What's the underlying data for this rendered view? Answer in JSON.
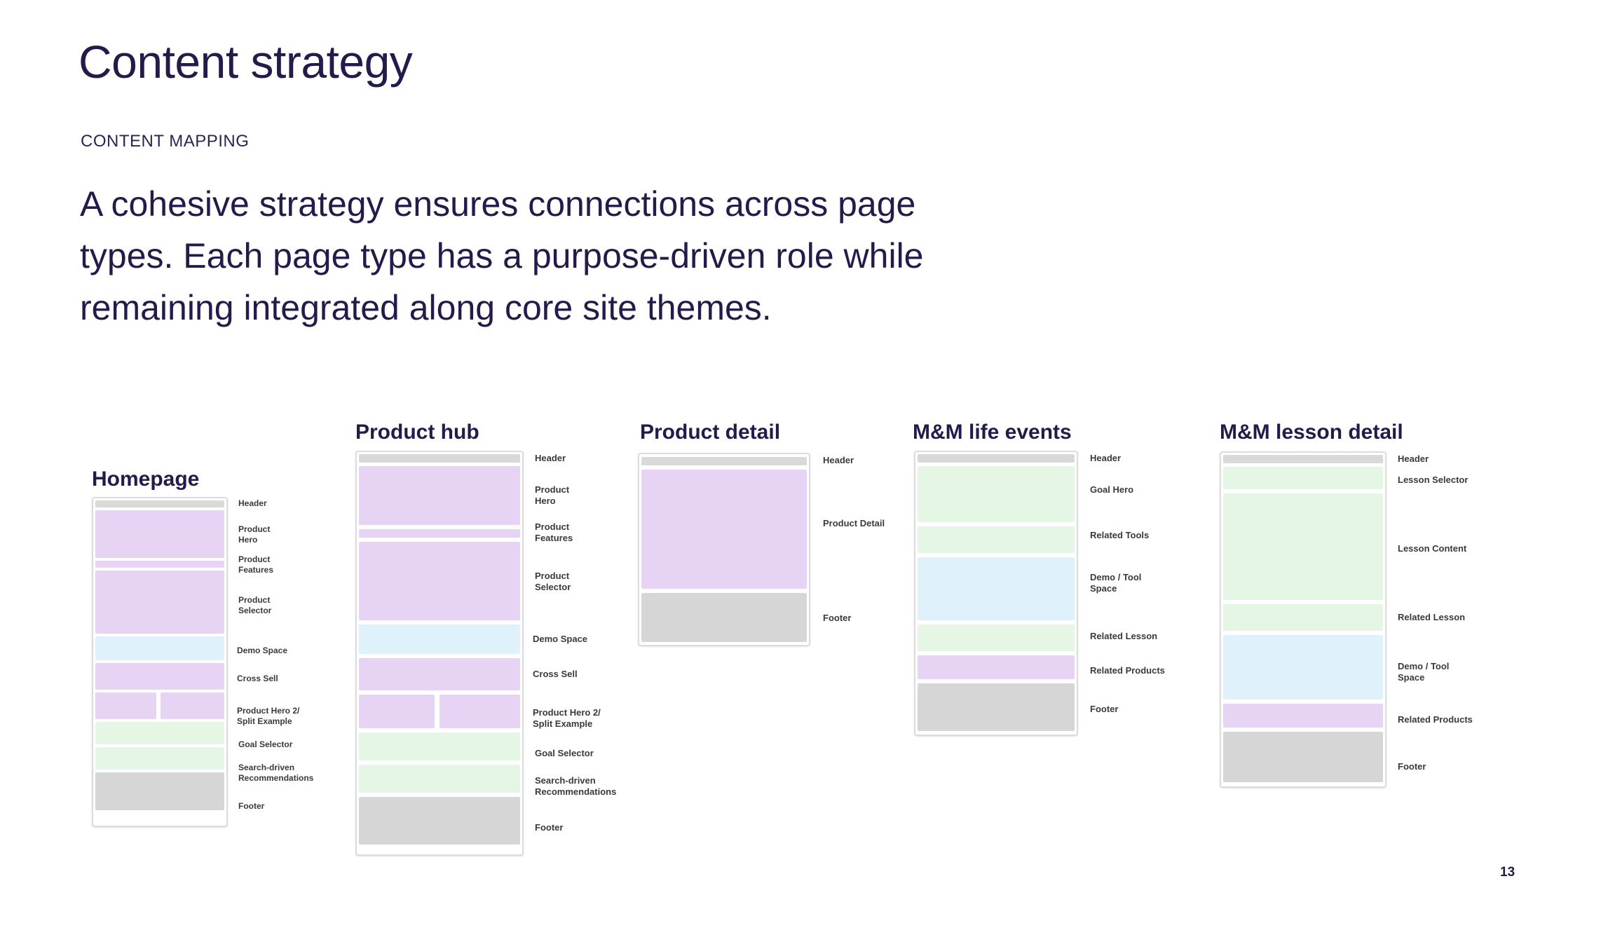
{
  "slide": {
    "title": "Content strategy",
    "eyebrow": "CONTENT MAPPING",
    "lead": "A cohesive strategy ensures connections across page types. Each page type has a purpose-driven role while remaining integrated along core site themes.",
    "page_number": "13"
  },
  "colors": {
    "header": "#d9d9d9",
    "product": "#e7d4f4",
    "demo": "#dff1fb",
    "goal": "#e5f7e4",
    "footer": "#d6d6d6"
  },
  "wireframes": {
    "homepage": {
      "title": "Homepage",
      "labels": [
        "Header",
        "Product\nHero",
        "Product\nFeatures",
        "Product\nSelector",
        "Demo Space",
        "Cross Sell",
        "Product Hero 2/\nSplit Example",
        "Goal Selector",
        "Search-driven\nRecommendations",
        "Footer"
      ]
    },
    "product_hub": {
      "title": "Product hub",
      "labels": [
        "Header",
        "Product\nHero",
        "Product\nFeatures",
        "Product\nSelector",
        "Demo Space",
        "Cross Sell",
        "Product Hero 2/\nSplit Example",
        "Goal Selector",
        "Search-driven\nRecommendations",
        "Footer"
      ]
    },
    "product_detail": {
      "title": "Product detail",
      "labels": [
        "Header",
        "Product Detail",
        "Footer"
      ]
    },
    "life_events": {
      "title": "M&M life events",
      "labels": [
        "Header",
        "Goal Hero",
        "Related Tools",
        "Demo / Tool\nSpace",
        "Related Lesson",
        "Related Products",
        "Footer"
      ]
    },
    "lesson_detail": {
      "title": "M&M lesson detail",
      "labels": [
        "Header",
        "Lesson Selector",
        "Lesson Content",
        "Related Lesson",
        "Demo / Tool\nSpace",
        "Related Products",
        "Footer"
      ]
    }
  }
}
